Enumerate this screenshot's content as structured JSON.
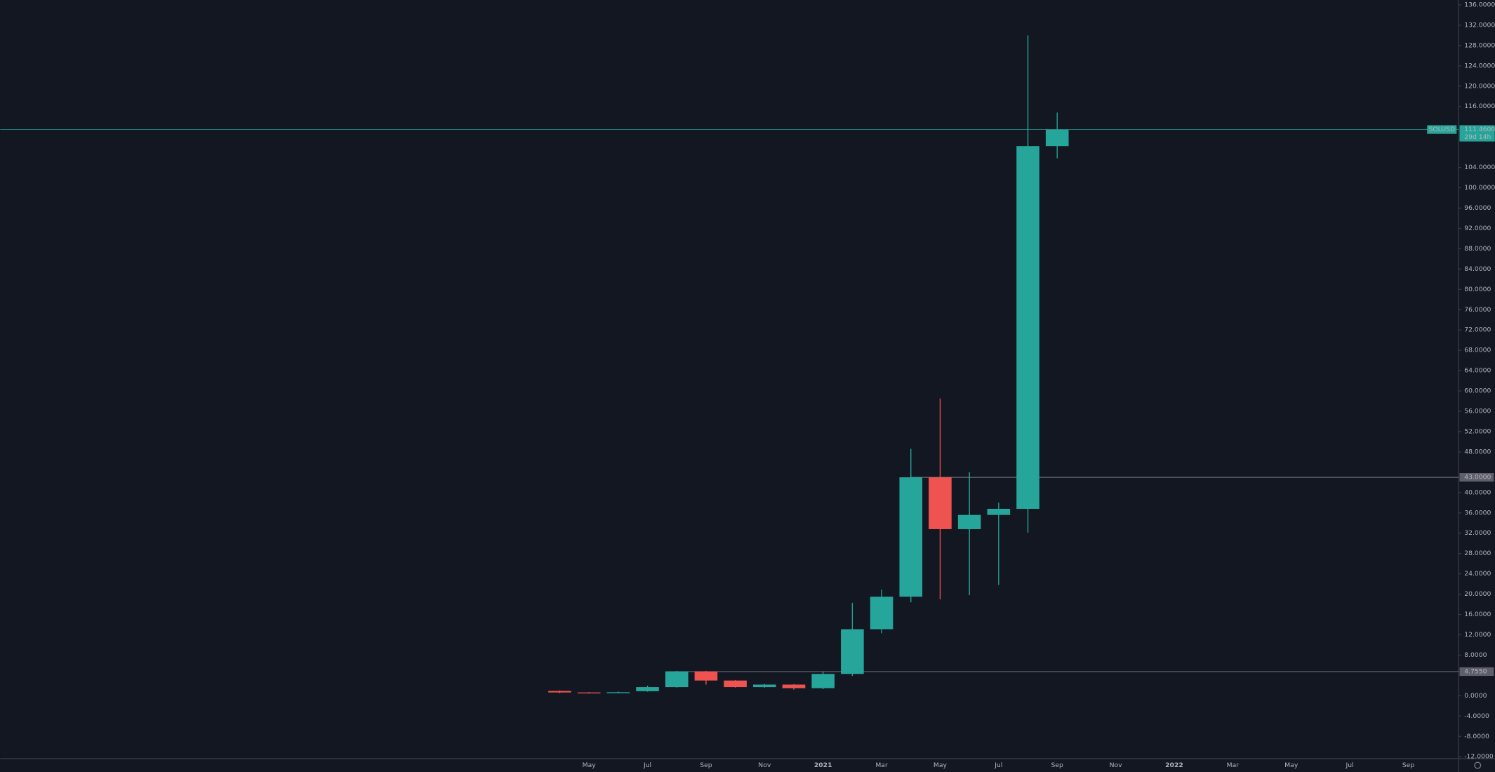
{
  "chart_data": {
    "type": "candlestick",
    "symbol": "SOLUSD",
    "countdown": "29d 14h",
    "up_color": "#26a69a",
    "down_color": "#ef5350",
    "categories": [
      null,
      "May",
      null,
      "Jul",
      null,
      "Sep",
      null,
      "Nov",
      null,
      "2021",
      null,
      "Mar",
      null,
      "May",
      null,
      "Jul",
      null,
      "Sep",
      null,
      "Nov",
      null,
      "2022",
      null,
      "Mar",
      null,
      "May",
      null,
      "Jul",
      null,
      "Sep"
    ],
    "open": [
      0.95,
      0.65,
      0.58,
      0.9,
      1.7,
      4.8,
      3.0,
      1.7,
      2.2,
      1.5,
      4.3,
      13.1,
      19.5,
      43,
      32.8,
      35.6,
      36.8,
      108.2,
      null,
      null,
      null,
      null,
      null,
      null,
      null,
      null,
      null,
      null,
      null,
      null
    ],
    "high": [
      1.05,
      0.75,
      0.85,
      2.0,
      4.9,
      4.9,
      3.1,
      2.3,
      2.3,
      4.7,
      18.3,
      20.9,
      48.6,
      58.5,
      44.0,
      38.0,
      130.0,
      114.8,
      null,
      null,
      null,
      null,
      null,
      null,
      null,
      null,
      null,
      null,
      null,
      null
    ],
    "low": [
      0.5,
      0.5,
      0.48,
      0.8,
      1.6,
      2.2,
      1.6,
      1.6,
      1.2,
      1.3,
      3.9,
      12.3,
      18.4,
      19.0,
      19.8,
      21.8,
      32.1,
      105.8,
      null,
      null,
      null,
      null,
      null,
      null,
      null,
      null,
      null,
      null,
      null,
      null
    ],
    "close": [
      0.65,
      0.58,
      0.7,
      1.7,
      4.8,
      3.0,
      1.7,
      2.2,
      1.5,
      4.3,
      13.1,
      19.5,
      43,
      32.8,
      35.6,
      36.8,
      108.2,
      111.46,
      null,
      null,
      null,
      null,
      null,
      null,
      null,
      null,
      null,
      null,
      null,
      null
    ],
    "ylim": [
      -12.38,
      136.96
    ],
    "yticks": [
      {
        "value": -12,
        "label": "-12.0000"
      },
      {
        "value": -8,
        "label": "-8.0000"
      },
      {
        "value": -4,
        "label": "-4.0000"
      },
      {
        "value": 0,
        "label": "0.0000"
      },
      {
        "value": 8,
        "label": "8.0000"
      },
      {
        "value": 12,
        "label": "12.0000"
      },
      {
        "value": 16,
        "label": "16.0000"
      },
      {
        "value": 20,
        "label": "20.0000"
      },
      {
        "value": 24,
        "label": "24.0000"
      },
      {
        "value": 28,
        "label": "28.0000"
      },
      {
        "value": 32,
        "label": "32.0000"
      },
      {
        "value": 36,
        "label": "36.0000"
      },
      {
        "value": 40,
        "label": "40.0000"
      },
      {
        "value": 48,
        "label": "48.0000"
      },
      {
        "value": 52,
        "label": "52.0000"
      },
      {
        "value": 56,
        "label": "56.0000"
      },
      {
        "value": 60,
        "label": "60.0000"
      },
      {
        "value": 64,
        "label": "64.0000"
      },
      {
        "value": 68,
        "label": "68.0000"
      },
      {
        "value": 72,
        "label": "72.0000"
      },
      {
        "value": 76,
        "label": "76.0000"
      },
      {
        "value": 80,
        "label": "80.0000"
      },
      {
        "value": 84,
        "label": "84.0000"
      },
      {
        "value": 88,
        "label": "88.0000"
      },
      {
        "value": 92,
        "label": "92.0000"
      },
      {
        "value": 96,
        "label": "96.0000"
      },
      {
        "value": 100,
        "label": "100.0000"
      },
      {
        "value": 104,
        "label": "104.0000"
      },
      {
        "value": 116,
        "label": "116.0000"
      },
      {
        "value": 120,
        "label": "120.0000"
      },
      {
        "value": 124,
        "label": "124.0000"
      },
      {
        "value": 128,
        "label": "128.0000"
      },
      {
        "value": 132,
        "label": "132.0000"
      },
      {
        "value": 136,
        "label": "136.0000"
      }
    ],
    "levels": [
      {
        "value": 43,
        "label": "43.0000"
      },
      {
        "value": 4.755,
        "label": "4.7550"
      }
    ],
    "last_price": {
      "value": 111.46,
      "label": "111.4600"
    }
  }
}
